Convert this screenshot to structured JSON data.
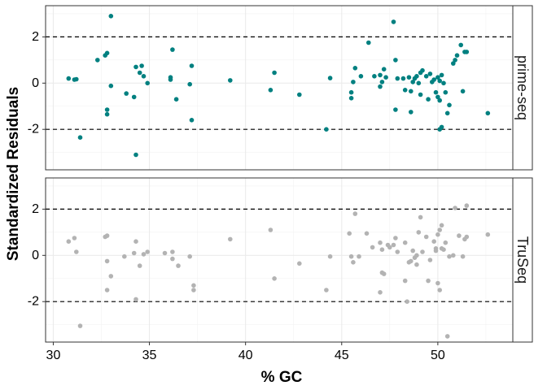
{
  "chart_data": {
    "type": "scatter",
    "xlabel": "% GC",
    "ylabel": "Standardized Residuals",
    "xlim": [
      29.6,
      53.9
    ],
    "ylim": [
      -3.75,
      3.35
    ],
    "x_ticks": [
      30,
      35,
      40,
      45,
      50
    ],
    "y_ticks": [
      -2,
      0,
      2
    ],
    "y_tick_labels": [
      "-2",
      "0",
      "2"
    ],
    "reference_lines": [
      2,
      -2
    ],
    "grid": true,
    "panels": [
      {
        "label": "prime-seq",
        "color": "#008080",
        "points": [
          [
            30.8,
            0.2
          ],
          [
            31.1,
            0.15
          ],
          [
            31.2,
            0.17
          ],
          [
            31.4,
            -2.35
          ],
          [
            32.3,
            1.0
          ],
          [
            32.7,
            1.2
          ],
          [
            32.8,
            1.3
          ],
          [
            32.8,
            -1.15
          ],
          [
            32.8,
            -1.35
          ],
          [
            33.0,
            2.9
          ],
          [
            33.0,
            -0.12
          ],
          [
            33.8,
            -0.45
          ],
          [
            34.2,
            -0.6
          ],
          [
            34.3,
            0.7
          ],
          [
            34.3,
            -3.1
          ],
          [
            34.5,
            0.45
          ],
          [
            34.6,
            0.75
          ],
          [
            34.7,
            0.3
          ],
          [
            34.9,
            0.0
          ],
          [
            36.1,
            0.25
          ],
          [
            36.1,
            0.15
          ],
          [
            36.2,
            1.45
          ],
          [
            36.4,
            -0.7
          ],
          [
            37.1,
            -0.05
          ],
          [
            37.2,
            0.75
          ],
          [
            37.2,
            -1.6
          ],
          [
            39.2,
            0.12
          ],
          [
            41.3,
            -0.3
          ],
          [
            41.5,
            0.45
          ],
          [
            42.8,
            -0.5
          ],
          [
            44.2,
            -2.0
          ],
          [
            44.4,
            0.22
          ],
          [
            45.5,
            -0.4
          ],
          [
            45.5,
            -0.65
          ],
          [
            45.6,
            0.05
          ],
          [
            45.7,
            0.65
          ],
          [
            46.0,
            0.3
          ],
          [
            46.4,
            1.75
          ],
          [
            46.7,
            0.3
          ],
          [
            47.0,
            0.35
          ],
          [
            47.0,
            -0.15
          ],
          [
            47.1,
            0.05
          ],
          [
            47.2,
            0.6
          ],
          [
            47.3,
            0.25
          ],
          [
            47.7,
            2.65
          ],
          [
            47.8,
            1.0
          ],
          [
            47.8,
            -1.15
          ],
          [
            47.9,
            0.2
          ],
          [
            48.2,
            0.2
          ],
          [
            48.3,
            -0.3
          ],
          [
            48.5,
            0.25
          ],
          [
            48.6,
            -0.35
          ],
          [
            48.6,
            -1.25
          ],
          [
            48.7,
            0.05
          ],
          [
            48.8,
            0.2
          ],
          [
            48.9,
            0.3
          ],
          [
            49.0,
            0.0
          ],
          [
            49.1,
            0.45
          ],
          [
            49.1,
            -0.5
          ],
          [
            49.2,
            0.55
          ],
          [
            49.4,
            0.3
          ],
          [
            49.5,
            -0.7
          ],
          [
            49.6,
            0.4
          ],
          [
            49.7,
            0.05
          ],
          [
            49.8,
            0.15
          ],
          [
            49.9,
            -0.4
          ],
          [
            50.0,
            0.25
          ],
          [
            50.0,
            -0.6
          ],
          [
            50.1,
            -0.75
          ],
          [
            50.1,
            0.1
          ],
          [
            50.1,
            -2.0
          ],
          [
            50.2,
            -1.9
          ],
          [
            50.2,
            0.35
          ],
          [
            50.3,
            0.0
          ],
          [
            50.4,
            -0.4
          ],
          [
            50.5,
            -1.3
          ],
          [
            50.6,
            -0.95
          ],
          [
            50.8,
            0.85
          ],
          [
            50.9,
            1.0
          ],
          [
            51.0,
            1.2
          ],
          [
            51.2,
            1.65
          ],
          [
            51.3,
            -0.35
          ],
          [
            51.4,
            1.35
          ],
          [
            51.5,
            1.35
          ],
          [
            52.6,
            -1.3
          ]
        ]
      },
      {
        "label": "TruSeq",
        "color": "#b3b3b3",
        "points": [
          [
            30.8,
            0.6
          ],
          [
            31.1,
            0.75
          ],
          [
            31.2,
            0.15
          ],
          [
            31.4,
            -3.05
          ],
          [
            32.7,
            0.8
          ],
          [
            32.8,
            0.85
          ],
          [
            32.8,
            -0.25
          ],
          [
            32.8,
            -1.5
          ],
          [
            33.0,
            -0.9
          ],
          [
            33.7,
            -0.05
          ],
          [
            34.2,
            0.1
          ],
          [
            34.3,
            0.6
          ],
          [
            34.3,
            -1.9
          ],
          [
            34.5,
            -0.45
          ],
          [
            34.7,
            0.05
          ],
          [
            34.9,
            0.15
          ],
          [
            35.8,
            0.1
          ],
          [
            36.2,
            0.15
          ],
          [
            36.2,
            -0.15
          ],
          [
            36.5,
            -0.45
          ],
          [
            37.1,
            -0.05
          ],
          [
            37.3,
            -1.3
          ],
          [
            37.3,
            -1.5
          ],
          [
            39.2,
            0.7
          ],
          [
            41.3,
            1.1
          ],
          [
            41.5,
            -1.0
          ],
          [
            42.8,
            -0.35
          ],
          [
            44.2,
            -1.5
          ],
          [
            44.4,
            -0.05
          ],
          [
            45.4,
            0.95
          ],
          [
            45.5,
            -0.05
          ],
          [
            45.6,
            -0.3
          ],
          [
            45.7,
            1.8
          ],
          [
            45.9,
            -0.05
          ],
          [
            46.3,
            0.95
          ],
          [
            46.6,
            0.35
          ],
          [
            47.0,
            0.55
          ],
          [
            47.0,
            -1.6
          ],
          [
            47.1,
            0.25
          ],
          [
            47.1,
            -0.75
          ],
          [
            47.2,
            -0.8
          ],
          [
            47.4,
            0.45
          ],
          [
            47.5,
            0.35
          ],
          [
            47.7,
            0.45
          ],
          [
            47.8,
            0.75
          ],
          [
            47.9,
            0.15
          ],
          [
            48.3,
            0.55
          ],
          [
            48.3,
            -1.1
          ],
          [
            48.4,
            -2.0
          ],
          [
            48.5,
            -0.3
          ],
          [
            48.6,
            -0.25
          ],
          [
            48.7,
            0.2
          ],
          [
            48.8,
            -0.1
          ],
          [
            48.9,
            0.0
          ],
          [
            48.9,
            -0.4
          ],
          [
            49.0,
            1.0
          ],
          [
            49.1,
            1.65
          ],
          [
            49.2,
            0.15
          ],
          [
            49.4,
            0.8
          ],
          [
            49.5,
            -1.1
          ],
          [
            49.6,
            -0.2
          ],
          [
            49.8,
            0.6
          ],
          [
            49.9,
            0.3
          ],
          [
            49.9,
            0.2
          ],
          [
            50.0,
            0.9
          ],
          [
            50.0,
            -1.2
          ],
          [
            50.1,
            1.1
          ],
          [
            50.1,
            -1.5
          ],
          [
            50.2,
            1.3
          ],
          [
            50.2,
            0.3
          ],
          [
            50.3,
            0.25
          ],
          [
            50.4,
            0.55
          ],
          [
            50.5,
            -3.5
          ],
          [
            50.6,
            -0.05
          ],
          [
            50.8,
            0.0
          ],
          [
            50.9,
            2.05
          ],
          [
            51.1,
            0.85
          ],
          [
            51.3,
            -0.05
          ],
          [
            51.4,
            0.7
          ],
          [
            51.5,
            0.8
          ],
          [
            51.5,
            2.15
          ],
          [
            52.6,
            0.9
          ]
        ]
      }
    ]
  }
}
